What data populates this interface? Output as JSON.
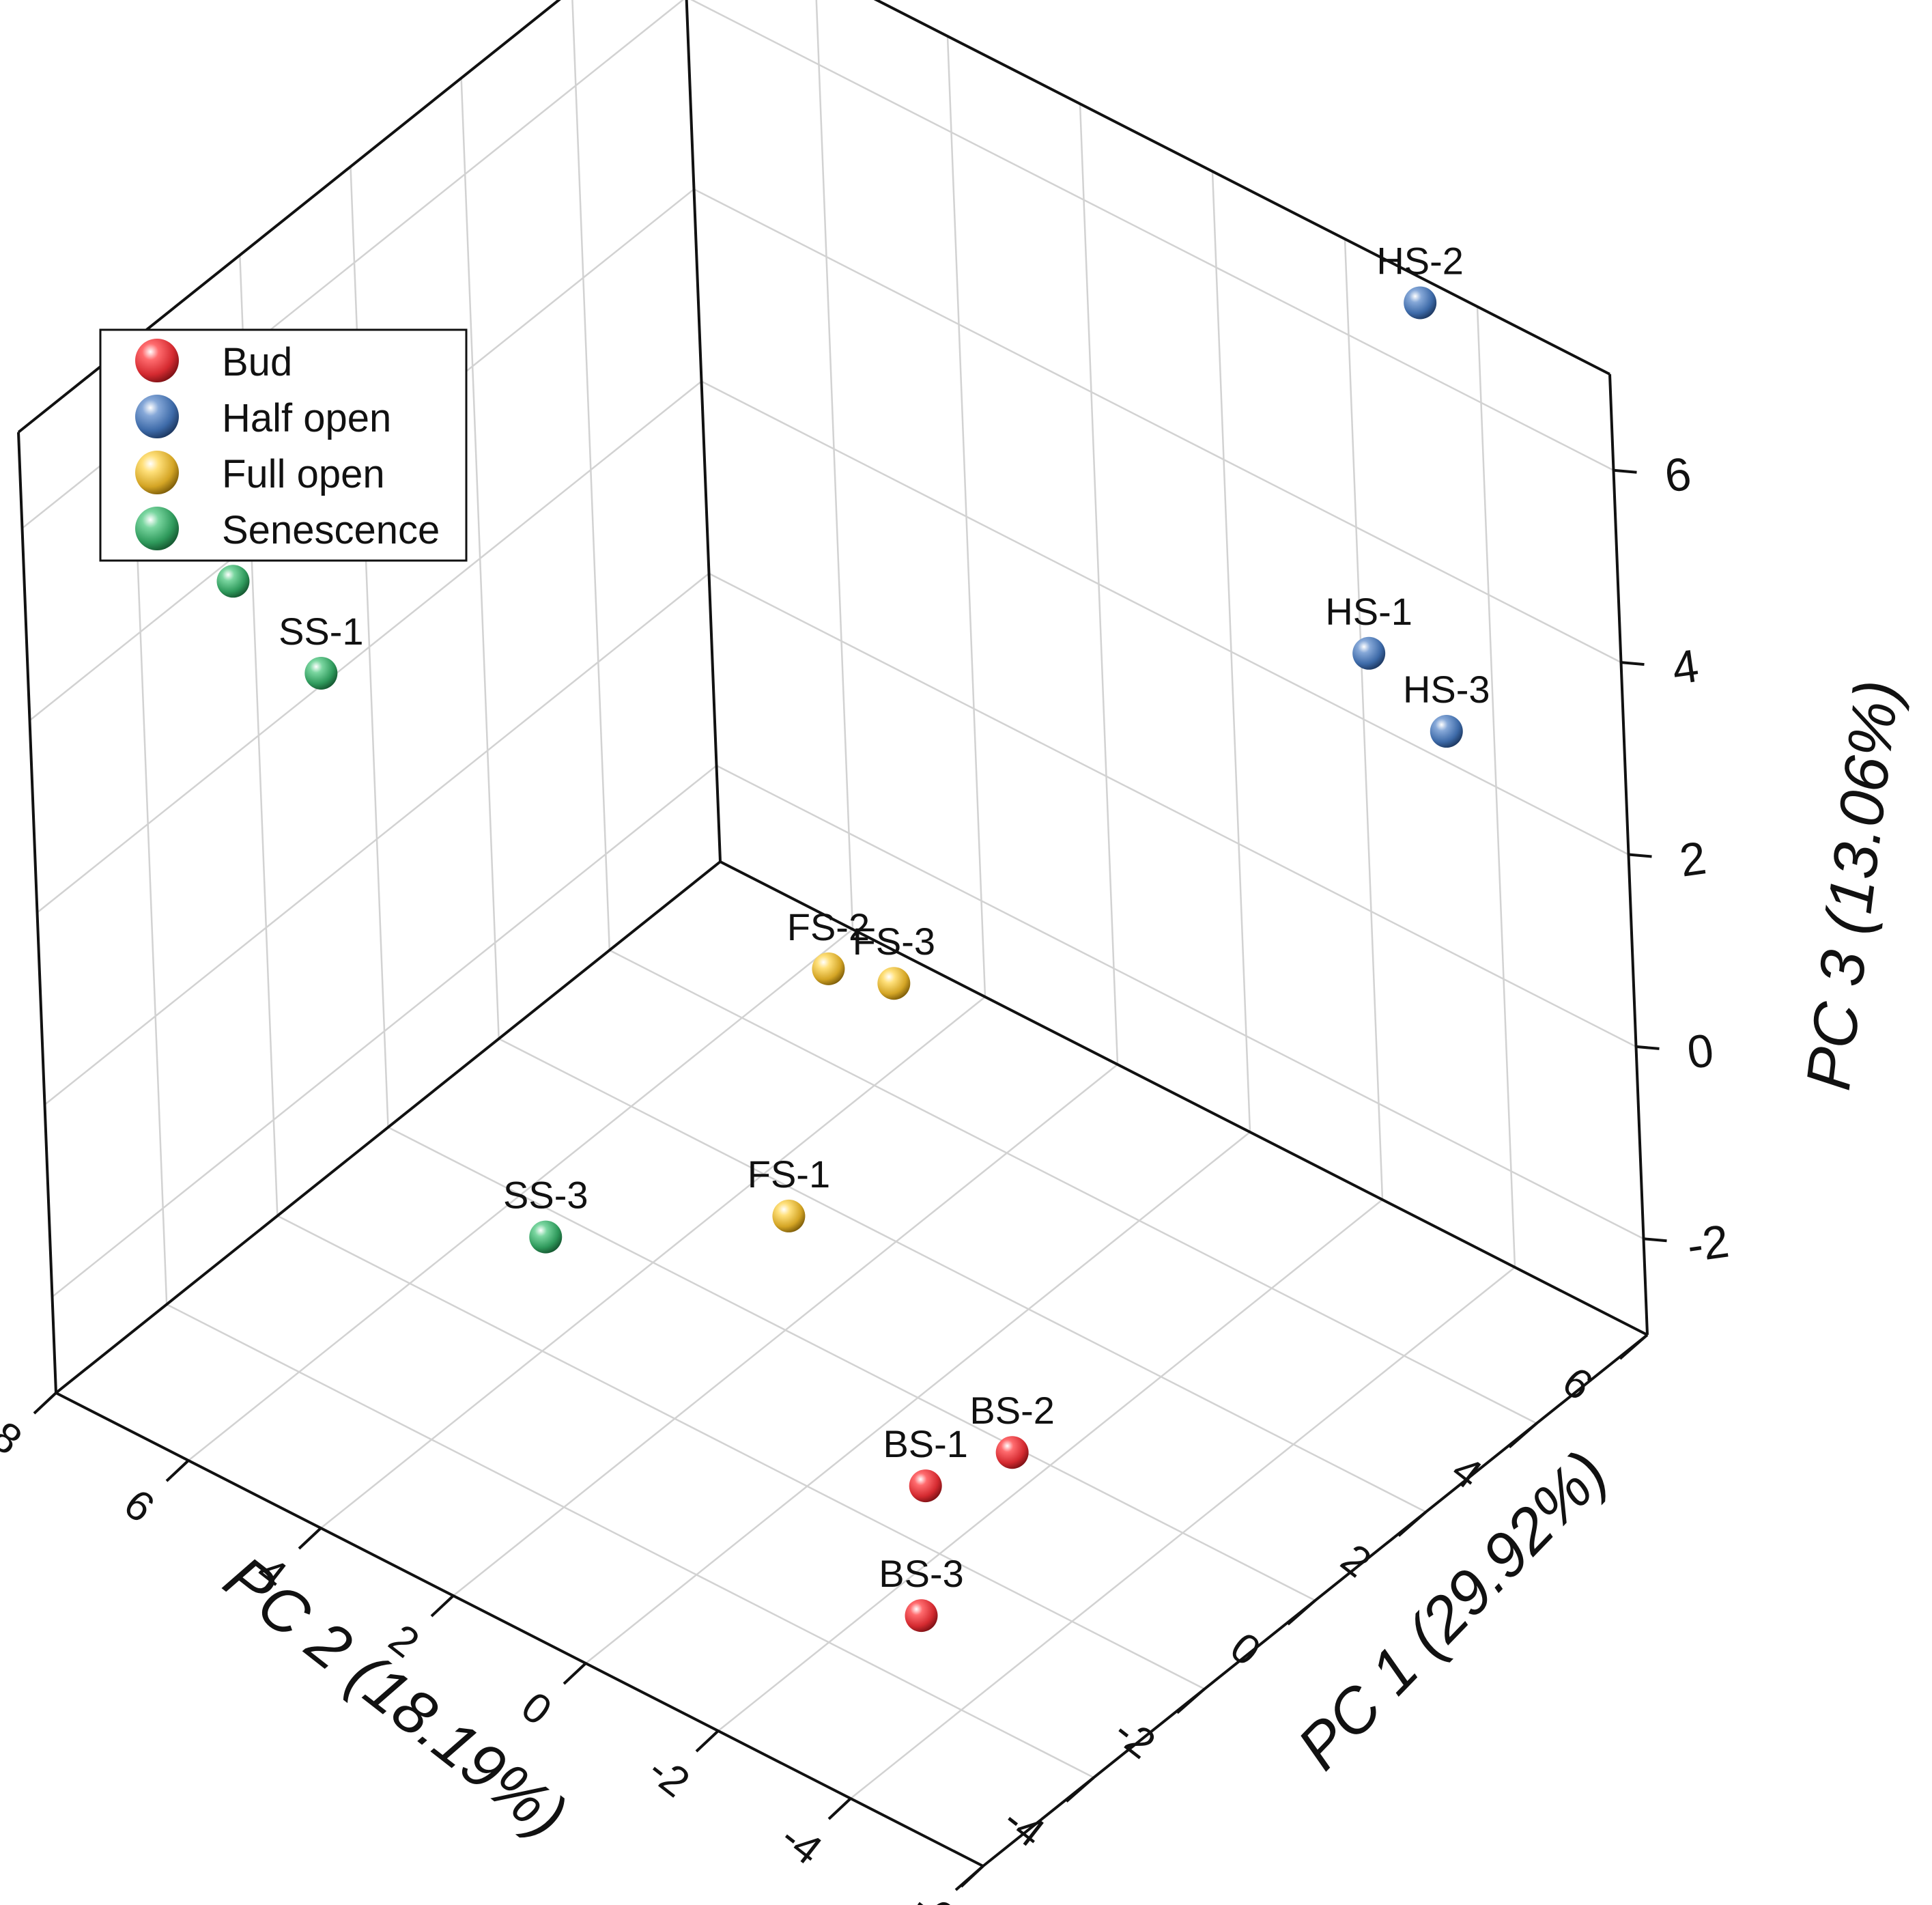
{
  "chart_data": {
    "type": "scatter3d",
    "title": "",
    "xlabel": "PC 1 (29.92%)",
    "ylabel": "PC 2 (18.19%)",
    "zlabel": "PC 3 (13.06%)",
    "xlim": [
      -6,
      6
    ],
    "ylim": [
      -6,
      8
    ],
    "zlim": [
      -3,
      7
    ],
    "xticks": [
      "-6",
      "-4",
      "-2",
      "0",
      "2",
      "4",
      "6"
    ],
    "yticks": [
      "-6",
      "-4",
      "-2",
      "0",
      "2",
      "4",
      "6",
      "8"
    ],
    "zticks": [
      "-2",
      "0",
      "2",
      "4",
      "6"
    ],
    "grid": true,
    "legend_position": "top-left",
    "series": [
      {
        "name": "Bud",
        "color": "#e8383d",
        "points": [
          {
            "label": "BS-1",
            "x": -2.2,
            "y": -2.0,
            "z": -2.2
          },
          {
            "label": "BS-2",
            "x": -1.0,
            "y": -2.3,
            "z": -2.3
          },
          {
            "label": "BS-3",
            "x": -3.5,
            "y": -3.0,
            "z": -2.6
          }
        ]
      },
      {
        "name": "Half open",
        "color": "#4a7cc0",
        "points": [
          {
            "label": "HS-1",
            "x": 5.0,
            "y": -3.0,
            "z": 3.5
          },
          {
            "label": "HS-2",
            "x": 5.0,
            "y": -4.0,
            "z": 7.5
          },
          {
            "label": "HS-3",
            "x": 4.6,
            "y": -4.5,
            "z": 3.4
          }
        ]
      },
      {
        "name": "Full open",
        "color": "#e6bb35",
        "points": [
          {
            "label": "FS-1",
            "x": -1.0,
            "y": 1.0,
            "z": -1.0
          },
          {
            "label": "FS-2",
            "x": 1.0,
            "y": 2.0,
            "z": 0.3
          },
          {
            "label": "FS-3",
            "x": 1.0,
            "y": 1.0,
            "z": 0.5
          }
        ]
      },
      {
        "name": "Senescence",
        "color": "#3ba669",
        "points": [
          {
            "label": "SS-1",
            "x": -2.0,
            "y": 7.0,
            "z": 3.0
          },
          {
            "label": "SS-2",
            "x": -2.0,
            "y": 8.3,
            "z": 3.5
          },
          {
            "label": "SS-3",
            "x": -3.0,
            "y": 3.0,
            "z": -1.0
          }
        ]
      }
    ]
  }
}
